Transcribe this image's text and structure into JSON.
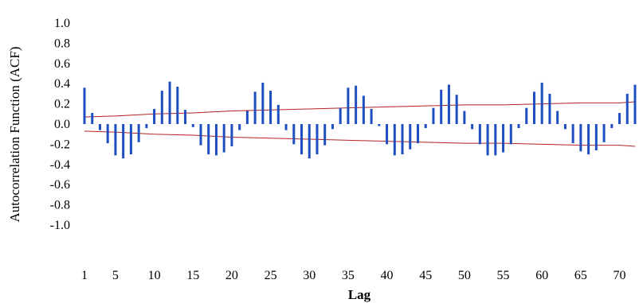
{
  "chart_data": {
    "type": "bar",
    "title": "",
    "xlabel": "Lag",
    "ylabel": "Autocorrelation Function (ACF)",
    "xlim": [
      1,
      72
    ],
    "ylim": [
      -1.0,
      1.0
    ],
    "x_ticks": [
      1,
      5,
      10,
      15,
      20,
      25,
      30,
      35,
      40,
      45,
      50,
      55,
      60,
      65,
      70
    ],
    "x_tick_labels": [
      "1",
      "5",
      "10",
      "15",
      "20",
      "25",
      "30",
      "35",
      "40",
      "45",
      "50",
      "55",
      "60",
      "65",
      "70"
    ],
    "y_ticks": [
      1.0,
      0.8,
      0.6,
      0.4,
      0.2,
      0.0,
      -0.2,
      -0.4,
      -0.6,
      -0.8,
      -1.0
    ],
    "y_tick_labels": [
      "1.0",
      "0.8",
      "0.6",
      "0.4",
      "0.2",
      "0.0",
      "-0.2",
      "-0.4",
      "-0.6",
      "-0.8",
      "-1.0"
    ],
    "grid": false,
    "legend": "none",
    "colors": {
      "bars": "#1f4fbf",
      "confidence_band": "#b22222"
    },
    "lags": [
      1,
      2,
      3,
      4,
      5,
      6,
      7,
      8,
      9,
      10,
      11,
      12,
      13,
      14,
      15,
      16,
      17,
      18,
      19,
      20,
      21,
      22,
      23,
      24,
      25,
      26,
      27,
      28,
      29,
      30,
      31,
      32,
      33,
      34,
      35,
      36,
      37,
      38,
      39,
      40,
      41,
      42,
      43,
      44,
      45,
      46,
      47,
      48,
      49,
      50,
      51,
      52,
      53,
      54,
      55,
      56,
      57,
      58,
      59,
      60,
      61,
      62,
      63,
      64,
      65,
      66,
      67,
      68,
      69,
      70,
      71,
      72
    ],
    "acf": [
      0.36,
      0.11,
      -0.06,
      -0.19,
      -0.31,
      -0.34,
      -0.3,
      -0.18,
      -0.04,
      0.15,
      0.33,
      0.42,
      0.37,
      0.14,
      -0.03,
      -0.21,
      -0.3,
      -0.31,
      -0.28,
      -0.22,
      -0.06,
      0.13,
      0.32,
      0.41,
      0.33,
      0.19,
      -0.06,
      -0.2,
      -0.3,
      -0.34,
      -0.3,
      -0.21,
      -0.05,
      0.16,
      0.36,
      0.38,
      0.28,
      0.15,
      -0.02,
      -0.2,
      -0.31,
      -0.3,
      -0.25,
      -0.19,
      -0.04,
      0.16,
      0.34,
      0.39,
      0.29,
      0.13,
      -0.05,
      -0.2,
      -0.31,
      -0.31,
      -0.28,
      -0.2,
      -0.04,
      0.16,
      0.32,
      0.41,
      0.3,
      0.13,
      -0.05,
      -0.19,
      -0.27,
      -0.3,
      -0.26,
      -0.18,
      -0.04,
      0.11,
      0.3,
      0.39
    ],
    "confidence_band": {
      "x": [
        1,
        5,
        10,
        15,
        20,
        25,
        30,
        35,
        40,
        45,
        50,
        55,
        60,
        65,
        70,
        72
      ],
      "upper": [
        0.07,
        0.08,
        0.1,
        0.11,
        0.13,
        0.14,
        0.15,
        0.16,
        0.17,
        0.18,
        0.19,
        0.19,
        0.2,
        0.21,
        0.21,
        0.22
      ],
      "lower": [
        -0.07,
        -0.08,
        -0.1,
        -0.11,
        -0.13,
        -0.14,
        -0.15,
        -0.16,
        -0.17,
        -0.18,
        -0.19,
        -0.19,
        -0.2,
        -0.21,
        -0.21,
        -0.22
      ]
    }
  }
}
